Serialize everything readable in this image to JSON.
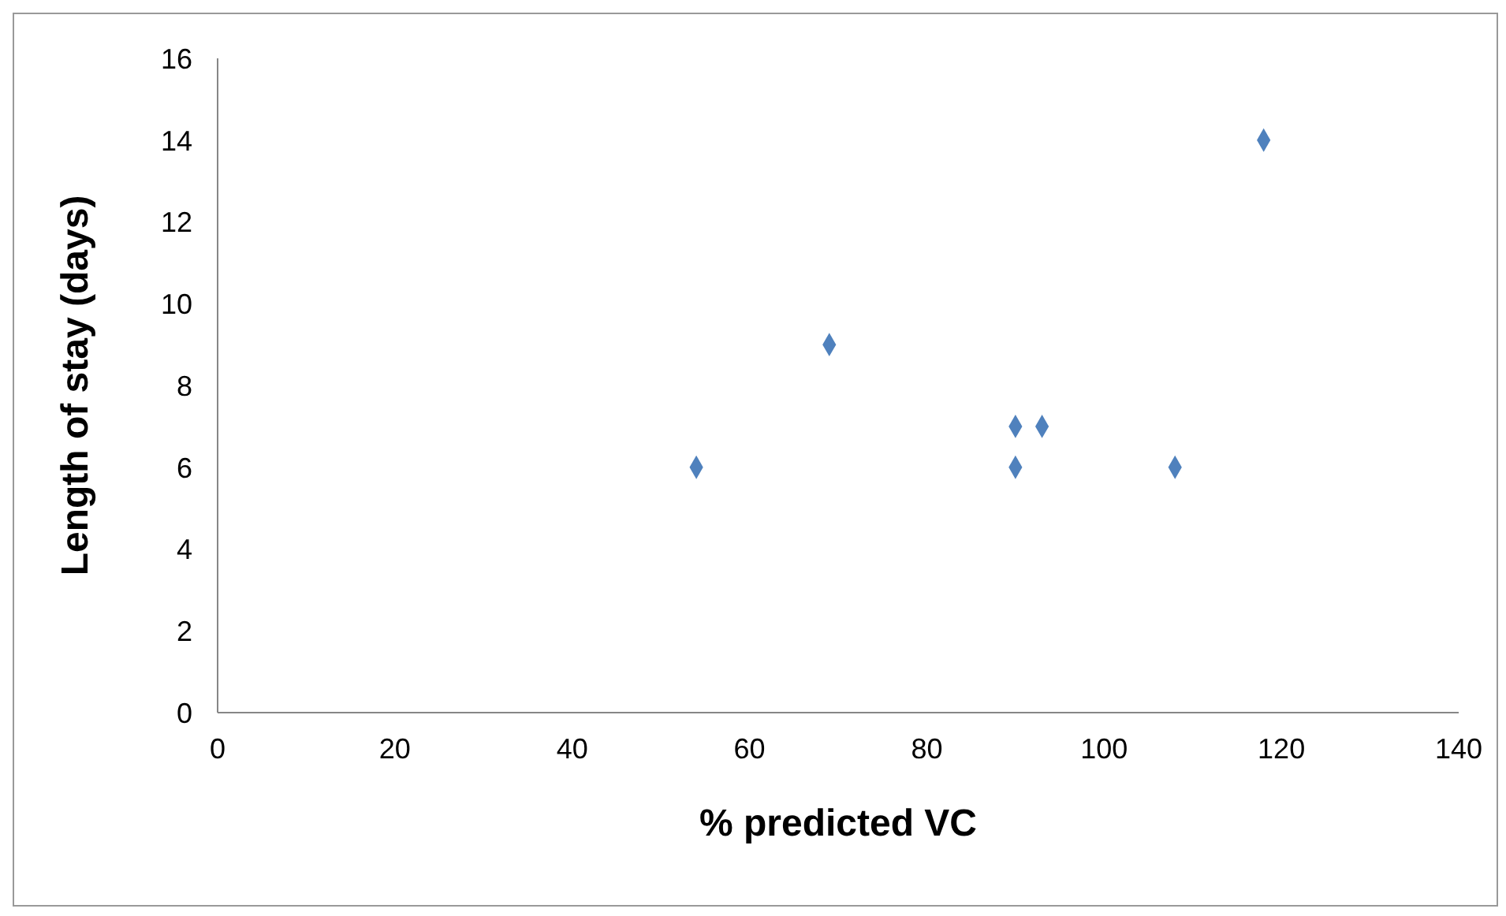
{
  "chart_data": {
    "type": "scatter",
    "xlabel": "% predicted VC",
    "ylabel": "Length of stay (days)",
    "x": [
      54,
      69,
      90,
      93,
      90,
      108,
      118
    ],
    "series": [
      {
        "color": "#4f81bd",
        "values": [
          6,
          9,
          7,
          7,
          6,
          6,
          14
        ]
      }
    ],
    "xlim": [
      0,
      140
    ],
    "xticks": [
      0,
      20,
      40,
      60,
      80,
      100,
      120,
      140
    ],
    "ylim": [
      0,
      16
    ],
    "yticks": [
      0,
      2,
      4,
      6,
      8,
      10,
      12,
      14,
      16
    ],
    "marker": "diamond"
  }
}
